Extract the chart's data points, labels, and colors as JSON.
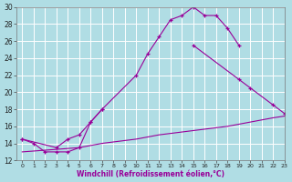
{
  "curves": [
    {
      "x": [
        0,
        3,
        4,
        5,
        6,
        7,
        10,
        11,
        12,
        13,
        14,
        15,
        16,
        17,
        18,
        19
      ],
      "y": [
        14.5,
        13.5,
        14.5,
        15.0,
        16.5,
        18.0,
        22.0,
        24.5,
        26.5,
        28.5,
        29.0,
        30.0,
        29.0,
        29.0,
        27.5,
        25.5
      ],
      "has_markers": true
    },
    {
      "x": [
        0,
        1,
        2,
        3,
        4,
        5,
        6,
        7
      ],
      "y": [
        14.5,
        14.0,
        13.0,
        13.0,
        13.0,
        13.5,
        16.5,
        18.0
      ],
      "has_markers": true
    },
    {
      "x": [
        15,
        19,
        20,
        22,
        23
      ],
      "y": [
        25.5,
        21.5,
        20.5,
        18.5,
        17.5
      ],
      "has_markers": true
    },
    {
      "x": [
        0,
        2,
        5,
        7,
        10,
        12,
        15,
        18,
        20,
        22,
        23
      ],
      "y": [
        13.0,
        13.2,
        13.5,
        14.0,
        14.5,
        15.0,
        15.5,
        16.0,
        16.5,
        17.0,
        17.2
      ],
      "has_markers": false
    }
  ],
  "xlabel": "Windchill (Refroidissement éolien,°C)",
  "ylim": [
    12,
    30
  ],
  "xlim": [
    -0.5,
    23
  ],
  "yticks": [
    12,
    14,
    16,
    18,
    20,
    22,
    24,
    26,
    28,
    30
  ],
  "xticks": [
    0,
    1,
    2,
    3,
    4,
    5,
    6,
    7,
    8,
    9,
    10,
    11,
    12,
    13,
    14,
    15,
    16,
    17,
    18,
    19,
    20,
    21,
    22,
    23
  ],
  "line_color": "#990099",
  "bg_color": "#b0dde4",
  "grid_color": "#ffffff"
}
